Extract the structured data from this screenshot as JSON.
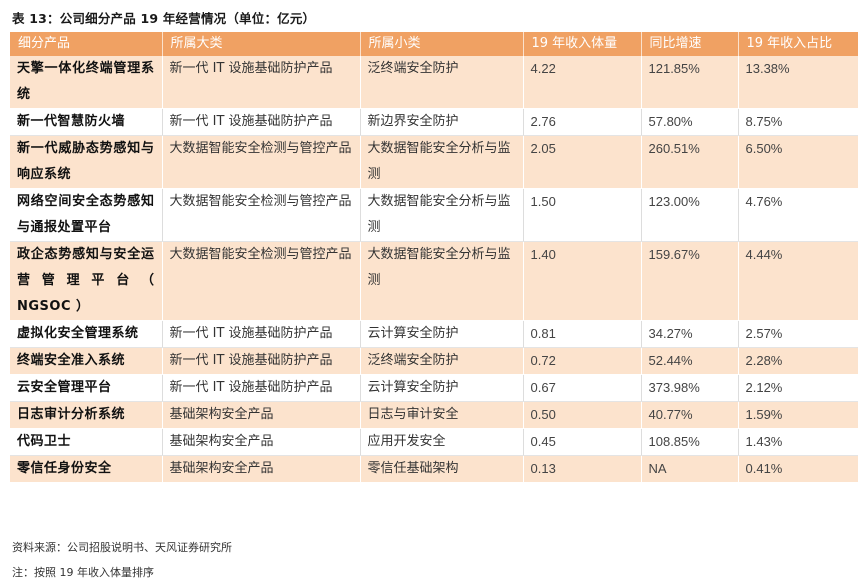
{
  "title": "表 13：公司细分产品 19 年经营情况（单位：亿元）",
  "columns": [
    "细分产品",
    "所属大类",
    "所属小类",
    "19 年收入体量",
    "同比增速",
    "19 年收入占比"
  ],
  "rows": [
    [
      "天擎一体化终端管理系统",
      "新一代 IT 设施基础防护产品",
      "泛终端安全防护",
      "4.22",
      "121.85%",
      "13.38%"
    ],
    [
      "新一代智慧防火墙",
      "新一代 IT 设施基础防护产品",
      "新边界安全防护",
      "2.76",
      "57.80%",
      "8.75%"
    ],
    [
      "新一代威胁态势感知与响应系统",
      "大数据智能安全检测与管控产品",
      "大数据智能安全分析与监测",
      "2.05",
      "260.51%",
      "6.50%"
    ],
    [
      "网络空间安全态势感知与通报处置平台",
      "大数据智能安全检测与管控产品",
      "大数据智能安全分析与监测",
      "1.50",
      "123.00%",
      "4.76%"
    ],
    [
      "政企态势感知与安全运营管理平台（ NGSOC ）",
      "大数据智能安全检测与管控产品",
      "大数据智能安全分析与监测",
      "1.40",
      "159.67%",
      "4.44%"
    ],
    [
      "虚拟化安全管理系统",
      "新一代 IT 设施基础防护产品",
      "云计算安全防护",
      "0.81",
      "34.27%",
      "2.57%"
    ],
    [
      "终端安全准入系统",
      "新一代 IT 设施基础防护产品",
      "泛终端安全防护",
      "0.72",
      "52.44%",
      "2.28%"
    ],
    [
      "云安全管理平台",
      "新一代 IT 设施基础防护产品",
      "云计算安全防护",
      "0.67",
      "373.98%",
      "2.12%"
    ],
    [
      "日志审计分析系统",
      "基础架构安全产品",
      "日志与审计安全",
      "0.50",
      "40.77%",
      "1.59%"
    ],
    [
      "代码卫士",
      "基础架构安全产品",
      "应用开发安全",
      "0.45",
      "108.85%",
      "1.43%"
    ],
    [
      "零信任身份安全",
      "基础架构安全产品",
      "零信任基础架构",
      "0.13",
      "NA",
      "0.41%"
    ]
  ],
  "source": "资料来源：公司招股说明书、天风证券研究所",
  "note": "注：按照 19 年收入体量排序",
  "colors": {
    "header_bg": "#f0a163",
    "stripe_bg": "#fce3cd"
  }
}
